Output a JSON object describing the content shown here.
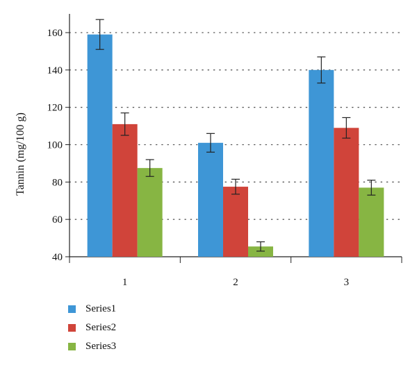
{
  "chart_data": {
    "type": "bar",
    "title": "",
    "xlabel": "",
    "ylabel": "Tannin (mg/100 g)",
    "categories": [
      "1",
      "2",
      "3"
    ],
    "ylim": [
      40,
      170
    ],
    "yticks": [
      40,
      60,
      80,
      100,
      120,
      140,
      160
    ],
    "grid": "horizontal dotted",
    "legend_position": "bottom-left",
    "error_bars": true,
    "series": [
      {
        "name": "Series1",
        "color": "#3e96d6",
        "values": [
          159,
          101,
          140
        ],
        "errors": [
          8,
          5,
          7
        ]
      },
      {
        "name": "Series2",
        "color": "#d0443a",
        "values": [
          111,
          77.5,
          109
        ],
        "errors": [
          6,
          4,
          5.5
        ]
      },
      {
        "name": "Series3",
        "color": "#87b543",
        "values": [
          87.5,
          45.5,
          77
        ],
        "errors": [
          4.5,
          2.5,
          4
        ]
      }
    ]
  }
}
